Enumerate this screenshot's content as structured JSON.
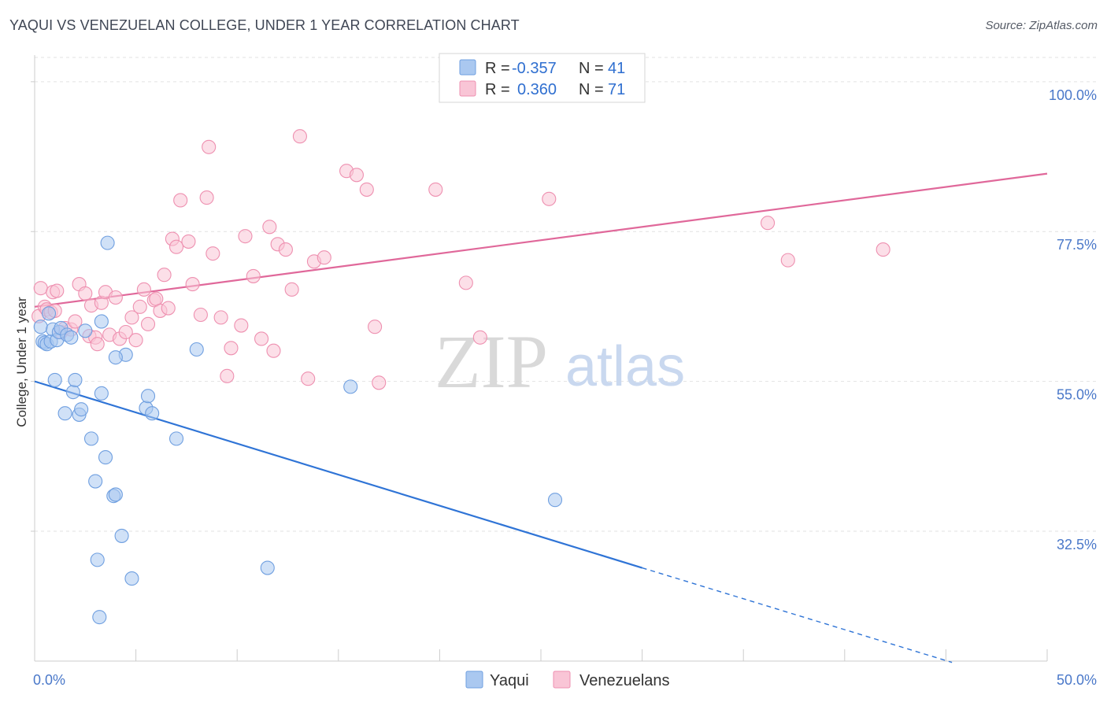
{
  "title": "YAQUI VS VENEZUELAN COLLEGE, UNDER 1 YEAR CORRELATION CHART",
  "source": "Source: ZipAtlas.com",
  "watermark": {
    "zip": "ZIP",
    "atlas": "atlas"
  },
  "legend": {
    "r_label": "R =",
    "n_label": "N =",
    "rows": [
      {
        "r": "-0.357",
        "n": "41",
        "color": "#aac8f0",
        "stroke": "#6f9fe0"
      },
      {
        "r": "0.360",
        "n": "71",
        "color": "#f9c5d6",
        "stroke": "#ee90b0"
      }
    ]
  },
  "bottom_legend": [
    "Yaqui",
    "Venezuelans"
  ],
  "chart_data": {
    "type": "scatter",
    "ylabel": "College, Under 1 year",
    "xlabel": "",
    "xlim": [
      0,
      50
    ],
    "ylim": [
      13,
      104
    ],
    "x_tick_labels": [
      "0.0%",
      "50.0%"
    ],
    "y_ticks": [
      32.5,
      55.0,
      77.5,
      100.0
    ],
    "y_tick_labels": [
      "32.5%",
      "55.0%",
      "77.5%",
      "100.0%"
    ],
    "grid": true,
    "series": [
      {
        "name": "Yaqui",
        "color": "#aac8f0",
        "stroke": "#6f9fe0",
        "trend": {
          "x0": 0,
          "y0": 55.0,
          "x1": 30,
          "y1": 27.0,
          "dash_to_x": 45.3,
          "dash_to_y": 12.8,
          "color": "#2f74d6"
        },
        "points": [
          [
            0.3,
            63.2
          ],
          [
            0.4,
            61.0
          ],
          [
            0.5,
            60.8
          ],
          [
            0.6,
            60.6
          ],
          [
            0.7,
            65.2
          ],
          [
            0.8,
            61.0
          ],
          [
            0.9,
            62.8
          ],
          [
            1.0,
            55.2
          ],
          [
            1.1,
            61.2
          ],
          [
            1.2,
            62.4
          ],
          [
            1.3,
            63.0
          ],
          [
            1.5,
            50.2
          ],
          [
            1.6,
            62.0
          ],
          [
            1.8,
            61.6
          ],
          [
            1.9,
            53.4
          ],
          [
            2.0,
            55.2
          ],
          [
            2.2,
            50.0
          ],
          [
            2.3,
            50.8
          ],
          [
            2.5,
            62.6
          ],
          [
            2.8,
            46.4
          ],
          [
            3.0,
            40.0
          ],
          [
            3.1,
            28.2
          ],
          [
            3.2,
            19.6
          ],
          [
            3.3,
            64.0
          ],
          [
            3.3,
            53.2
          ],
          [
            3.5,
            43.6
          ],
          [
            3.6,
            75.8
          ],
          [
            3.9,
            37.8
          ],
          [
            4.0,
            38.0
          ],
          [
            4.3,
            31.8
          ],
          [
            4.5,
            59.0
          ],
          [
            4.8,
            25.4
          ],
          [
            5.5,
            51.0
          ],
          [
            5.6,
            52.8
          ],
          [
            5.8,
            50.2
          ],
          [
            7.0,
            46.4
          ],
          [
            8.0,
            59.8
          ],
          [
            11.5,
            27.0
          ],
          [
            15.6,
            54.2
          ],
          [
            25.7,
            37.2
          ],
          [
            4.0,
            58.6
          ]
        ]
      },
      {
        "name": "Venezuelans",
        "color": "#f9c5d6",
        "stroke": "#ee90b0",
        "trend": {
          "x0": 0,
          "y0": 66.2,
          "x1": 50,
          "y1": 86.2,
          "color": "#e0689a"
        },
        "points": [
          [
            0.2,
            64.8
          ],
          [
            0.3,
            69.0
          ],
          [
            0.5,
            66.2
          ],
          [
            0.6,
            65.8
          ],
          [
            0.8,
            65.4
          ],
          [
            0.9,
            68.4
          ],
          [
            1.0,
            65.6
          ],
          [
            1.1,
            68.6
          ],
          [
            1.3,
            62.4
          ],
          [
            1.5,
            63.0
          ],
          [
            1.8,
            62.8
          ],
          [
            2.0,
            64.0
          ],
          [
            2.2,
            69.6
          ],
          [
            2.5,
            68.2
          ],
          [
            2.7,
            61.8
          ],
          [
            2.8,
            66.4
          ],
          [
            3.0,
            61.6
          ],
          [
            3.1,
            60.6
          ],
          [
            3.3,
            66.8
          ],
          [
            3.5,
            68.4
          ],
          [
            3.7,
            62.0
          ],
          [
            4.0,
            67.6
          ],
          [
            4.2,
            61.4
          ],
          [
            4.5,
            62.4
          ],
          [
            4.8,
            64.6
          ],
          [
            5.0,
            61.2
          ],
          [
            5.2,
            66.2
          ],
          [
            5.4,
            68.8
          ],
          [
            5.6,
            63.6
          ],
          [
            5.9,
            67.2
          ],
          [
            6.0,
            67.4
          ],
          [
            6.2,
            65.6
          ],
          [
            6.4,
            71.0
          ],
          [
            6.6,
            66.0
          ],
          [
            6.8,
            76.4
          ],
          [
            7.0,
            75.2
          ],
          [
            7.2,
            82.2
          ],
          [
            7.6,
            76.0
          ],
          [
            7.8,
            69.6
          ],
          [
            8.2,
            65.0
          ],
          [
            8.5,
            82.6
          ],
          [
            8.6,
            90.2
          ],
          [
            8.8,
            74.2
          ],
          [
            9.2,
            64.6
          ],
          [
            9.5,
            55.8
          ],
          [
            9.7,
            60.0
          ],
          [
            10.2,
            63.4
          ],
          [
            10.4,
            76.8
          ],
          [
            10.8,
            70.8
          ],
          [
            11.2,
            61.4
          ],
          [
            11.6,
            78.2
          ],
          [
            11.8,
            59.6
          ],
          [
            12.0,
            75.6
          ],
          [
            12.4,
            74.8
          ],
          [
            12.7,
            68.8
          ],
          [
            13.1,
            91.8
          ],
          [
            13.5,
            55.4
          ],
          [
            13.8,
            73.0
          ],
          [
            14.3,
            73.6
          ],
          [
            15.4,
            86.6
          ],
          [
            15.9,
            86.0
          ],
          [
            16.4,
            83.8
          ],
          [
            16.8,
            63.2
          ],
          [
            17.0,
            54.8
          ],
          [
            19.8,
            83.8
          ],
          [
            21.3,
            69.8
          ],
          [
            22.0,
            61.6
          ],
          [
            25.4,
            82.4
          ],
          [
            36.2,
            78.8
          ],
          [
            37.2,
            73.2
          ],
          [
            41.9,
            74.8
          ]
        ]
      }
    ]
  }
}
